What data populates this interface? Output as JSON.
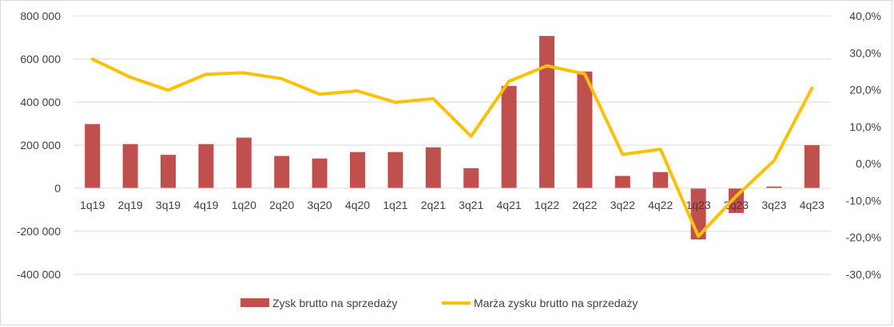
{
  "chart_data": {
    "type": "bar+line",
    "categories": [
      "1q19",
      "2q19",
      "3q19",
      "4q19",
      "1q20",
      "2q20",
      "3q20",
      "4q20",
      "1q21",
      "2q21",
      "3q21",
      "4q21",
      "1q22",
      "2q22",
      "3q22",
      "4q22",
      "1q23",
      "2q23",
      "3q23",
      "4q23"
    ],
    "series": [
      {
        "name": "Zysk brutto na sprzedaży",
        "type": "bar",
        "axis": "left",
        "color": "#c0504d",
        "values": [
          298000,
          205000,
          155000,
          205000,
          235000,
          150000,
          138000,
          168000,
          168000,
          190000,
          93000,
          475000,
          707000,
          542000,
          57000,
          75000,
          -238000,
          -115000,
          8000,
          200000
        ]
      },
      {
        "name": "Marża zysku brutto na sprzedaży",
        "type": "line",
        "axis": "right",
        "color": "#ffc000",
        "values": [
          28.3,
          23.4,
          19.9,
          24.2,
          24.6,
          23.0,
          18.8,
          19.7,
          16.6,
          17.6,
          7.4,
          22.3,
          26.5,
          24.3,
          2.5,
          3.9,
          -19.7,
          -8.8,
          0.8,
          20.4
        ]
      }
    ],
    "y_left": {
      "ylim": [
        -400000,
        800000
      ],
      "ticks": [
        -400000,
        -200000,
        0,
        200000,
        400000,
        600000,
        800000
      ],
      "tick_labels": [
        "-400 000",
        "-200 000",
        "0",
        "200 000",
        "400 000",
        "600 000",
        "800 000"
      ]
    },
    "y_right": {
      "ylim": [
        -30,
        40
      ],
      "ticks": [
        -30,
        -20,
        -10,
        0,
        10,
        20,
        30,
        40
      ],
      "tick_labels": [
        "-30,0%",
        "-20,0%",
        "-10,0%",
        "0,0%",
        "10,0%",
        "20,0%",
        "30,0%",
        "40,0%"
      ]
    },
    "grid": true,
    "legend": "bottom",
    "title": "",
    "xlabel": "",
    "ylabel": ""
  }
}
